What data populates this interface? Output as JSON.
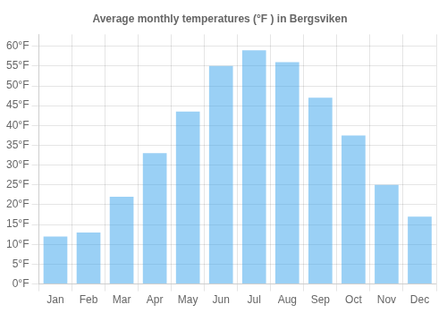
{
  "chart_data": {
    "type": "bar",
    "title": "Average monthly temperatures (°F ) in Bergsviken",
    "categories": [
      "Jan",
      "Feb",
      "Mar",
      "Apr",
      "May",
      "Jun",
      "Jul",
      "Aug",
      "Sep",
      "Oct",
      "Nov",
      "Dec"
    ],
    "values": [
      12,
      13,
      22,
      33,
      43.5,
      55,
      59,
      56,
      47,
      37.5,
      25,
      17
    ],
    "ylim": [
      0,
      63
    ],
    "yticks": [
      {
        "value": 0,
        "label": "0°F"
      },
      {
        "value": 5,
        "label": "5°F"
      },
      {
        "value": 10,
        "label": "10°F"
      },
      {
        "value": 15,
        "label": "15°F"
      },
      {
        "value": 20,
        "label": "20°F"
      },
      {
        "value": 25,
        "label": "25°F"
      },
      {
        "value": 30,
        "label": "30°F"
      },
      {
        "value": 35,
        "label": "35°F"
      },
      {
        "value": 40,
        "label": "40°F"
      },
      {
        "value": 45,
        "label": "45°F"
      },
      {
        "value": 50,
        "label": "50°F"
      },
      {
        "value": 55,
        "label": "55°F"
      },
      {
        "value": 60,
        "label": "60°F"
      }
    ],
    "grid": true
  }
}
